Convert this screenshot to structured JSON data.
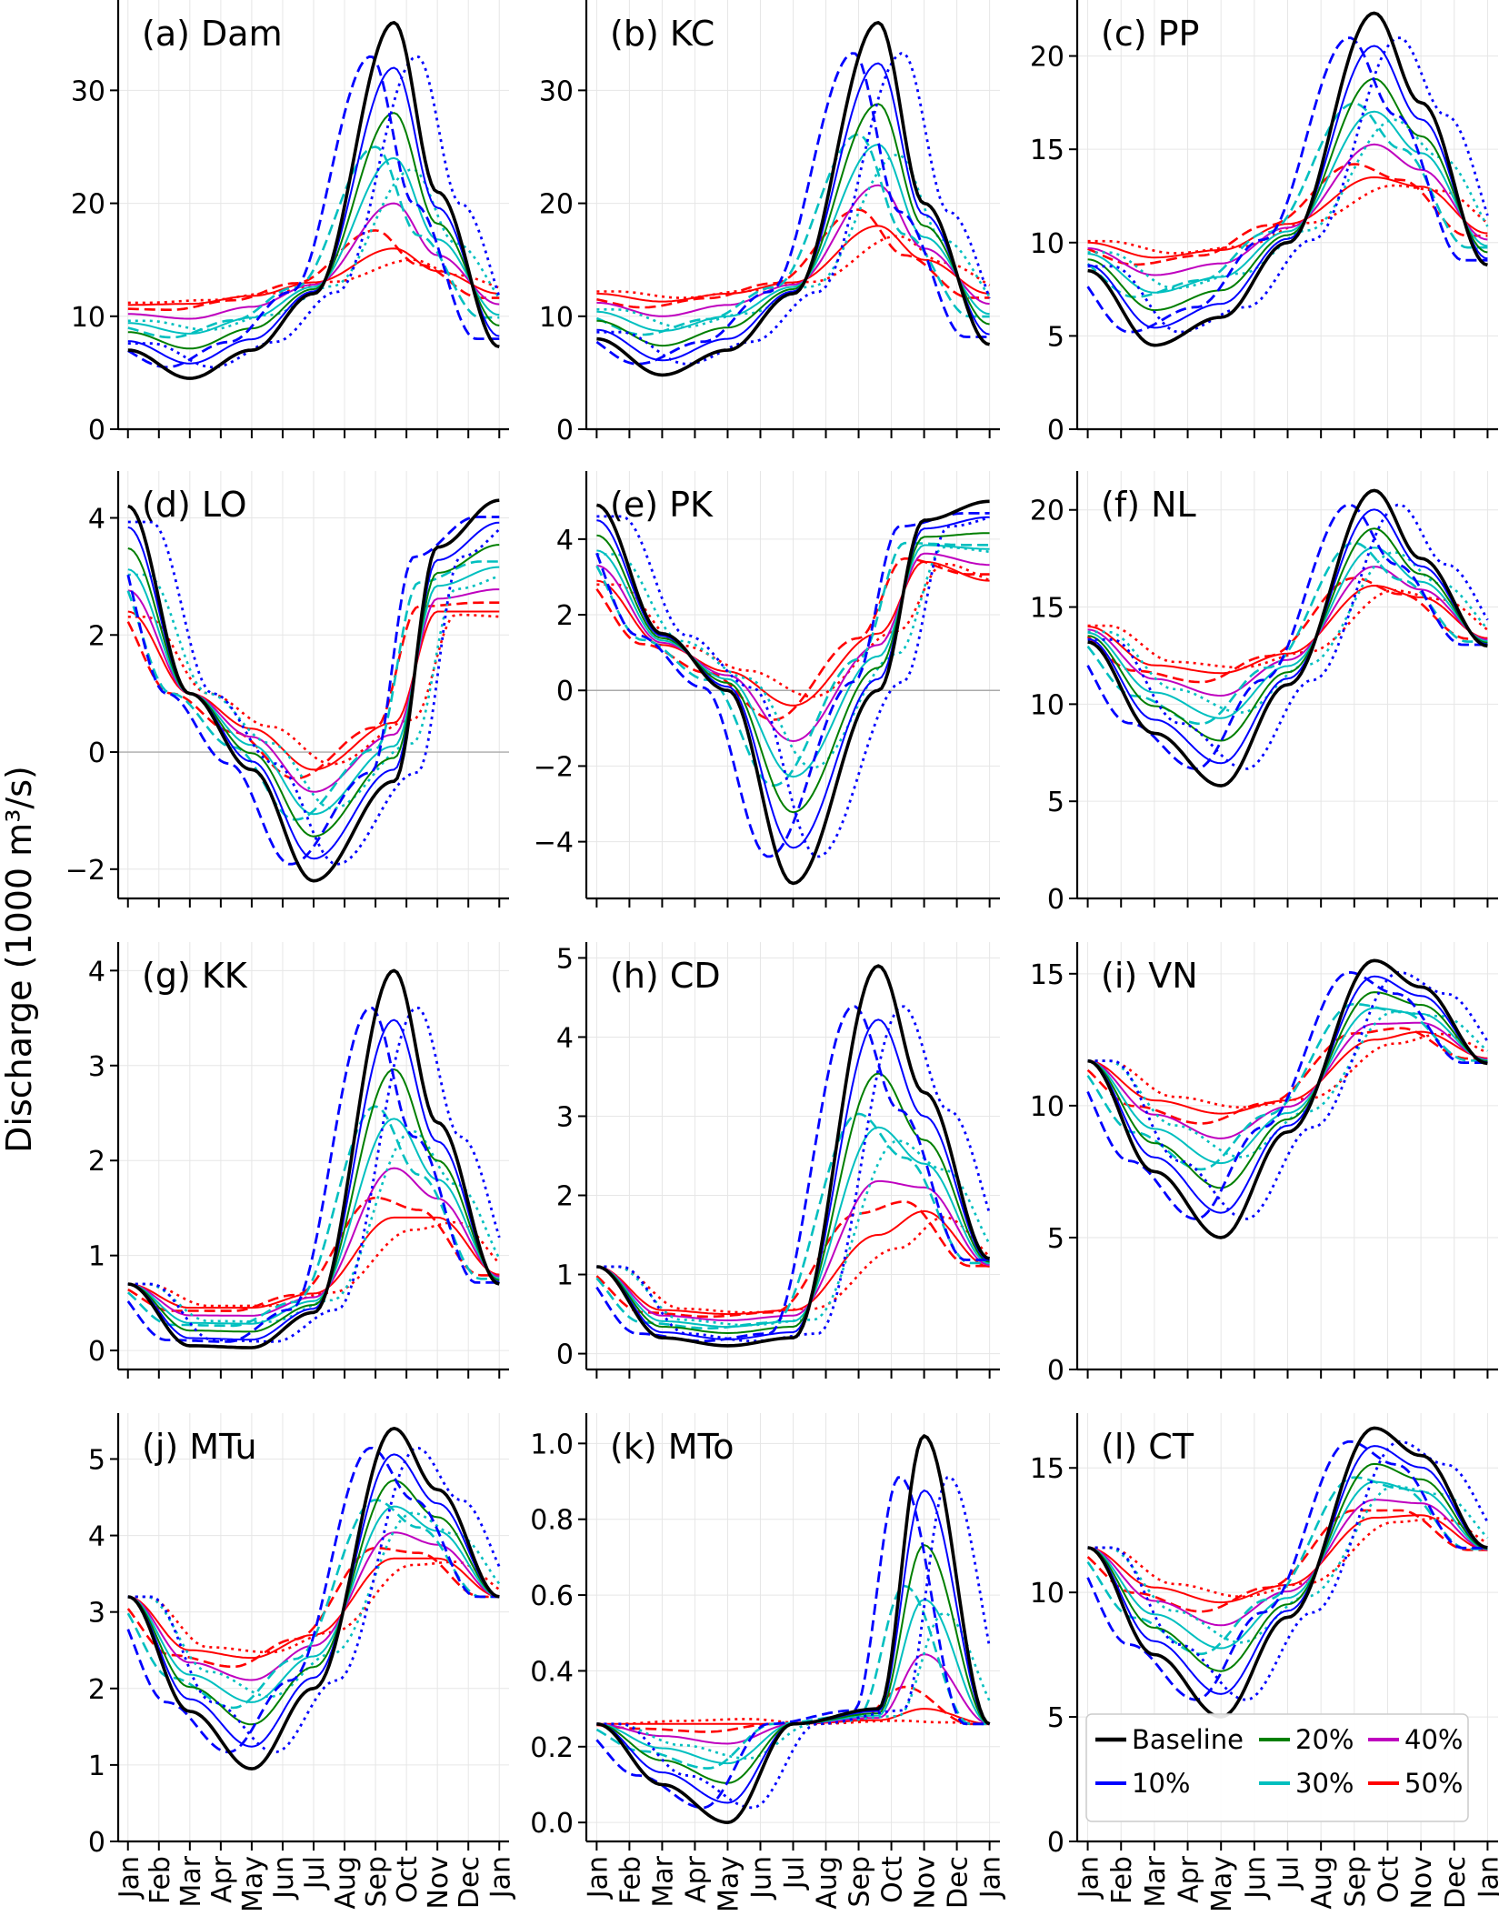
{
  "figure": {
    "ylabel": "Discharge (1000 m³/s)",
    "months": [
      "Jan",
      "Feb",
      "Mar",
      "Apr",
      "May",
      "Jun",
      "Jul",
      "Aug",
      "Sep",
      "Oct",
      "Nov",
      "Dec",
      "Jan"
    ],
    "legend": [
      {
        "key": "baseline",
        "label": "Baseline"
      },
      {
        "key": "p20",
        "label": "20%"
      },
      {
        "key": "p40",
        "label": "40%"
      },
      {
        "key": "p10",
        "label": "10%"
      },
      {
        "key": "p30",
        "label": "30%"
      },
      {
        "key": "p50",
        "label": "50%"
      }
    ]
  },
  "colors": {
    "baseline": "#000000",
    "p10": "#0000ff",
    "p20": "#007f00",
    "p30": "#00bfbf",
    "p40": "#bf00bf",
    "p50": "#ff0000"
  },
  "chart_data": [
    {
      "type": "line",
      "title": "(a) Dam",
      "ylim": [
        0,
        38
      ],
      "yticks": [
        0,
        10,
        20,
        30
      ],
      "yticklabels": [
        "0",
        "10",
        "20",
        "30"
      ],
      "base": [
        7,
        4.5,
        7,
        12,
        36,
        21,
        7.3
      ],
      "lo": [
        11,
        11.1,
        11.8,
        13,
        16,
        14,
        12
      ]
    },
    {
      "type": "line",
      "title": "(b) KC",
      "ylim": [
        0,
        38
      ],
      "yticks": [
        0,
        10,
        20,
        30
      ],
      "yticklabels": [
        "0",
        "10",
        "20",
        "30"
      ],
      "base": [
        8,
        4.8,
        7,
        12,
        36,
        20,
        7.5
      ],
      "lo": [
        12,
        11.3,
        12,
        13,
        18,
        15,
        12
      ]
    },
    {
      "type": "line",
      "title": "(c) PP",
      "ylim": [
        0,
        23
      ],
      "yticks": [
        0,
        5,
        10,
        15,
        20
      ],
      "yticklabels": [
        "0",
        "5",
        "10",
        "15",
        "20"
      ],
      "base": [
        8.5,
        4.5,
        6,
        10,
        22.3,
        17.5,
        8.8
      ],
      "lo": [
        10,
        9.2,
        9.6,
        11,
        13.5,
        13,
        10.5
      ]
    },
    {
      "type": "line",
      "title": "(d) LO",
      "ylim": [
        -2.5,
        4.8
      ],
      "yticks": [
        -2,
        0,
        2,
        4
      ],
      "yticklabels": [
        "−2",
        "0",
        "2",
        "4"
      ],
      "zeroline": true,
      "base": [
        4.2,
        1,
        -0.3,
        -2.2,
        -0.5,
        3.5,
        4.3
      ],
      "lo": [
        2.4,
        1.0,
        0.4,
        -0.3,
        0.5,
        2.4,
        2.4
      ]
    },
    {
      "type": "line",
      "title": "(e) PK",
      "ylim": [
        -5.5,
        5.8
      ],
      "yticks": [
        -4,
        -2,
        0,
        2,
        4
      ],
      "yticklabels": [
        "−4",
        "−2",
        "0",
        "2",
        "4"
      ],
      "zeroline": true,
      "base": [
        4.9,
        1.5,
        0,
        -5.1,
        0,
        4.5,
        5.0
      ],
      "lo": [
        2.9,
        1.2,
        0.5,
        -0.4,
        1.5,
        3.4,
        2.9
      ]
    },
    {
      "type": "line",
      "title": "(f) NL",
      "ylim": [
        0,
        22
      ],
      "yticks": [
        0,
        5,
        10,
        15,
        20
      ],
      "yticklabels": [
        "0",
        "5",
        "10",
        "15",
        "20"
      ],
      "base": [
        13.2,
        8.5,
        5.8,
        11,
        21,
        17.5,
        13
      ],
      "lo": [
        14,
        12,
        11.6,
        12.6,
        16.1,
        15.5,
        13.4
      ]
    },
    {
      "type": "line",
      "title": "(g) KK",
      "ylim": [
        -0.2,
        4.3
      ],
      "yticks": [
        0,
        1,
        2,
        3,
        4
      ],
      "yticklabels": [
        "0",
        "1",
        "2",
        "3",
        "4"
      ],
      "base": [
        0.7,
        0.05,
        0.03,
        0.4,
        4.0,
        2.4,
        0.7
      ],
      "lo": [
        0.7,
        0.45,
        0.45,
        0.6,
        1.4,
        1.4,
        0.8
      ]
    },
    {
      "type": "line",
      "title": "(h) CD",
      "ylim": [
        -0.2,
        5.2
      ],
      "yticks": [
        0,
        1,
        2,
        3,
        4,
        5
      ],
      "yticklabels": [
        "0",
        "1",
        "2",
        "3",
        "4",
        "5"
      ],
      "base": [
        1.1,
        0.2,
        0.1,
        0.2,
        4.9,
        3.3,
        1.2
      ],
      "lo": [
        1.1,
        0.55,
        0.5,
        0.55,
        1.5,
        1.8,
        1.1
      ]
    },
    {
      "type": "line",
      "title": "(i) VN",
      "ylim": [
        0,
        16.2
      ],
      "yticks": [
        0,
        5,
        10,
        15
      ],
      "yticklabels": [
        "0",
        "5",
        "10",
        "15"
      ],
      "base": [
        11.7,
        7.5,
        5,
        9,
        15.5,
        14.5,
        11.6
      ],
      "lo": [
        11.7,
        10.2,
        9.7,
        10.2,
        12.5,
        12.8,
        11.8
      ]
    },
    {
      "type": "line",
      "title": "(j) MTu",
      "ylim": [
        0,
        5.6
      ],
      "yticks": [
        0,
        1,
        2,
        3,
        4,
        5
      ],
      "yticklabels": [
        "0",
        "1",
        "2",
        "3",
        "4",
        "5"
      ],
      "base": [
        3.2,
        1.7,
        0.95,
        2.0,
        5.4,
        4.6,
        3.2
      ],
      "lo": [
        3.2,
        2.5,
        2.4,
        2.7,
        3.7,
        3.7,
        3.2
      ]
    },
    {
      "type": "line",
      "title": "(k) MTo",
      "ylim": [
        -0.05,
        1.08
      ],
      "yticks": [
        0,
        0.2,
        0.4,
        0.6,
        0.8,
        1.0
      ],
      "yticklabels": [
        "0.0",
        "0.2",
        "0.4",
        "0.6",
        "0.8",
        "1.0"
      ],
      "base": [
        0.26,
        0.1,
        0.0,
        0.26,
        0.3,
        1.02,
        0.26
      ],
      "lo": [
        0.26,
        0.26,
        0.26,
        0.26,
        0.27,
        0.3,
        0.26
      ]
    },
    {
      "type": "line",
      "title": "(l) CT",
      "ylim": [
        0,
        17.2
      ],
      "yticks": [
        0,
        5,
        10,
        15
      ],
      "yticklabels": [
        "0",
        "5",
        "10",
        "15"
      ],
      "base": [
        11.8,
        7.5,
        5,
        9,
        16.6,
        15.5,
        11.8
      ],
      "lo": [
        11.8,
        10.2,
        9.6,
        10.3,
        13,
        13.1,
        11.7
      ]
    }
  ]
}
